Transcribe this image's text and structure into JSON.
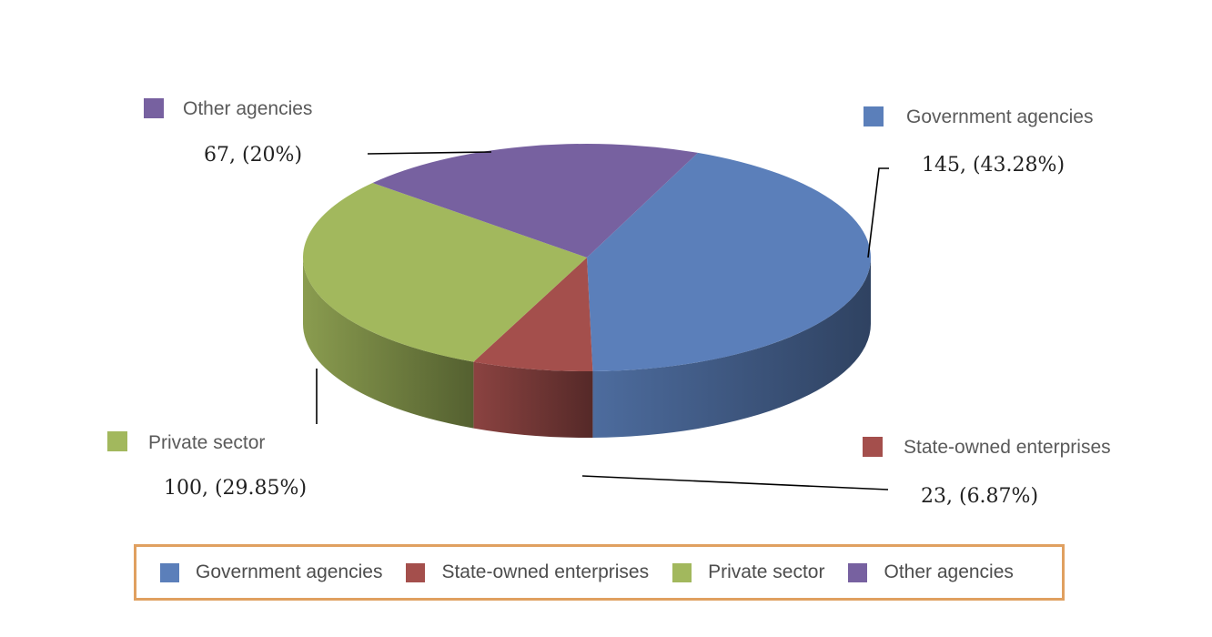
{
  "chart_data": {
    "type": "pie",
    "title": "",
    "series": [
      {
        "name": "Government agencies",
        "value": 145,
        "percent_label": "145, (43.28%)",
        "color": "#5b7fba"
      },
      {
        "name": "State-owned enterprises",
        "value": 23,
        "percent_label": "23, (6.87%)",
        "color": "#a44f4c"
      },
      {
        "name": "Private sector",
        "value": 100,
        "percent_label": "100, (29.85%)",
        "color": "#a2b85d"
      },
      {
        "name": "Other agencies",
        "value": 67,
        "percent_label": "67, (20%)",
        "color": "#7761a0"
      }
    ],
    "legend_position": "bottom",
    "style": "3d"
  }
}
